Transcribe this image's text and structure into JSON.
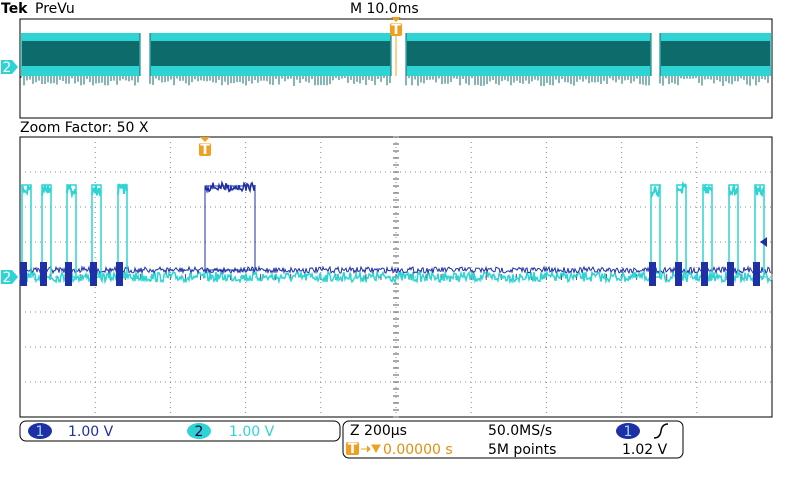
{
  "header": {
    "brand": "Tek",
    "mode": "PreVu",
    "timebase": "M 10.0ms"
  },
  "zoom": {
    "label": "Zoom Factor: 50 X"
  },
  "markers": {
    "trigger": "T",
    "channel_2": "2"
  },
  "status": {
    "ch1": {
      "number": "1",
      "scale": "1.00 V"
    },
    "ch2": {
      "number": "2",
      "scale": "1.00 V"
    },
    "zoom_timebase": "Z 200µs",
    "sample_rate": "50.0MS/s",
    "trigger_position": "0.00000 s",
    "record_length": "5M points",
    "trigger_source": "1",
    "trigger_level": "1.02 V"
  }
}
